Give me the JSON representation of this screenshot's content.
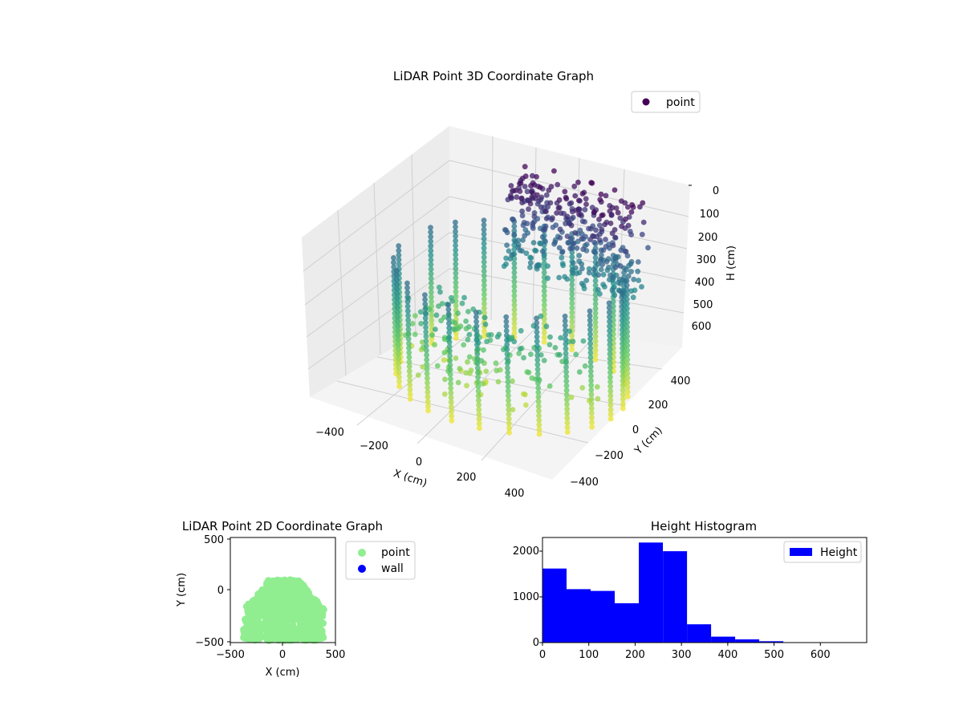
{
  "chart_data": [
    {
      "type": "scatter",
      "projection": "3d",
      "title": "LiDAR Point 3D Coordinate Graph",
      "xlabel": "X (cm)",
      "ylabel": "Y (cm)",
      "zlabel": "H (cm)",
      "x_ticks": [
        "−400",
        "−200",
        "0",
        "200",
        "400"
      ],
      "y_ticks": [
        "−400",
        "−200",
        "0",
        "200",
        "400"
      ],
      "z_ticks": [
        "0",
        "100",
        "200",
        "300",
        "400",
        "500",
        "600"
      ],
      "xlim": [
        -500,
        500
      ],
      "ylim": [
        -500,
        500
      ],
      "zlim": [
        0,
        700
      ],
      "z_inverted": true,
      "colormap": "viridis",
      "grid": true,
      "legend": {
        "position": "top-right",
        "entries": [
          {
            "label": "point",
            "color": "#440154"
          }
        ]
      },
      "series": [
        {
          "name": "point",
          "description_of_shape": "vertical scan lines around a horseshoe-shaped wall",
          "columns_angles_deg": [
            15,
            30,
            45,
            60,
            75,
            90,
            105,
            120,
            135,
            150,
            165,
            180,
            195,
            210,
            225,
            240,
            255,
            270,
            285,
            300,
            315,
            330,
            345
          ],
          "radius_cm": 430,
          "height_range_cm": [
            0,
            680
          ]
        }
      ]
    },
    {
      "type": "scatter",
      "title": "LiDAR Point 2D Coordinate Graph",
      "xlabel": "X (cm)",
      "ylabel": "Y (cm)",
      "xlim": [
        -520,
        520
      ],
      "ylim": [
        -520,
        520
      ],
      "x_ticks": [
        "−500",
        "0",
        "500"
      ],
      "y_ticks": [
        "−500",
        "0",
        "500"
      ],
      "legend": {
        "position": "outside-right",
        "entries": [
          {
            "label": "point",
            "color": "#90ee90"
          },
          {
            "label": "wall",
            "color": "#0000ff"
          }
        ]
      },
      "series": [
        {
          "name": "point",
          "color": "#90ee90",
          "extent_x": [
            -400,
            420
          ],
          "extent_y": [
            -500,
            100
          ]
        },
        {
          "name": "wall",
          "color": "#0000ff",
          "values": []
        }
      ]
    },
    {
      "type": "bar",
      "subtype": "histogram",
      "title": "Height Histogram",
      "xlabel": "",
      "ylabel": "",
      "xlim": [
        0,
        700
      ],
      "ylim": [
        0,
        2300
      ],
      "x_ticks": [
        "0",
        "100",
        "200",
        "300",
        "400",
        "500",
        "600"
      ],
      "y_ticks": [
        "0",
        "1000",
        "2000"
      ],
      "bin_edges": [
        0,
        52,
        104,
        156,
        208,
        260,
        312,
        364,
        416,
        468,
        520,
        572,
        624,
        676
      ],
      "values": [
        1620,
        1170,
        1130,
        860,
        2190,
        2000,
        400,
        130,
        70,
        30,
        0,
        0,
        0
      ],
      "color": "#0000ff",
      "legend": {
        "position": "top-right",
        "entries": [
          {
            "label": "Height",
            "color": "#0000ff"
          }
        ]
      }
    }
  ]
}
